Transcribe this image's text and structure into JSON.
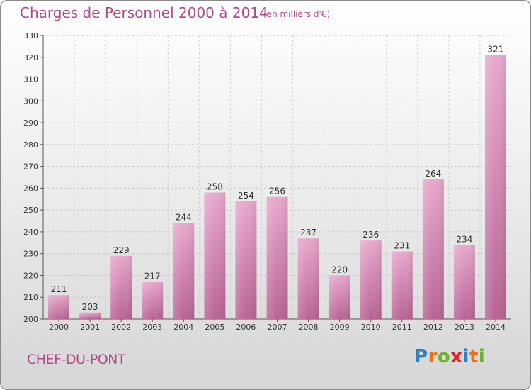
{
  "title": "Charges de Personnel 2000 à 2014",
  "subtitle": "(en milliers d'€)",
  "place": "CHEF-DU-PONT",
  "logo": {
    "letters": [
      "P",
      "r",
      "o",
      "x",
      "i",
      "t",
      "i"
    ],
    "colors": [
      "#2f7fc1",
      "#e8731c",
      "#6ab42d",
      "#d9262b",
      "#2f7fc1",
      "#e8731c",
      "#6ab42d"
    ]
  },
  "colors": {
    "bar_light": "#e8a8cc",
    "bar_dark": "#b86494",
    "text_accent": "#b04a89"
  },
  "chart_data": {
    "type": "bar",
    "categories": [
      "2000",
      "2001",
      "2002",
      "2003",
      "2004",
      "2005",
      "2006",
      "2007",
      "2008",
      "2009",
      "2010",
      "2011",
      "2012",
      "2013",
      "2014"
    ],
    "values": [
      211,
      203,
      229,
      217,
      244,
      258,
      254,
      256,
      237,
      220,
      236,
      231,
      264,
      234,
      321
    ],
    "ylim": [
      200,
      330
    ],
    "yticks": [
      200,
      210,
      220,
      230,
      240,
      250,
      260,
      270,
      280,
      290,
      300,
      310,
      320,
      330
    ],
    "grid": true
  }
}
